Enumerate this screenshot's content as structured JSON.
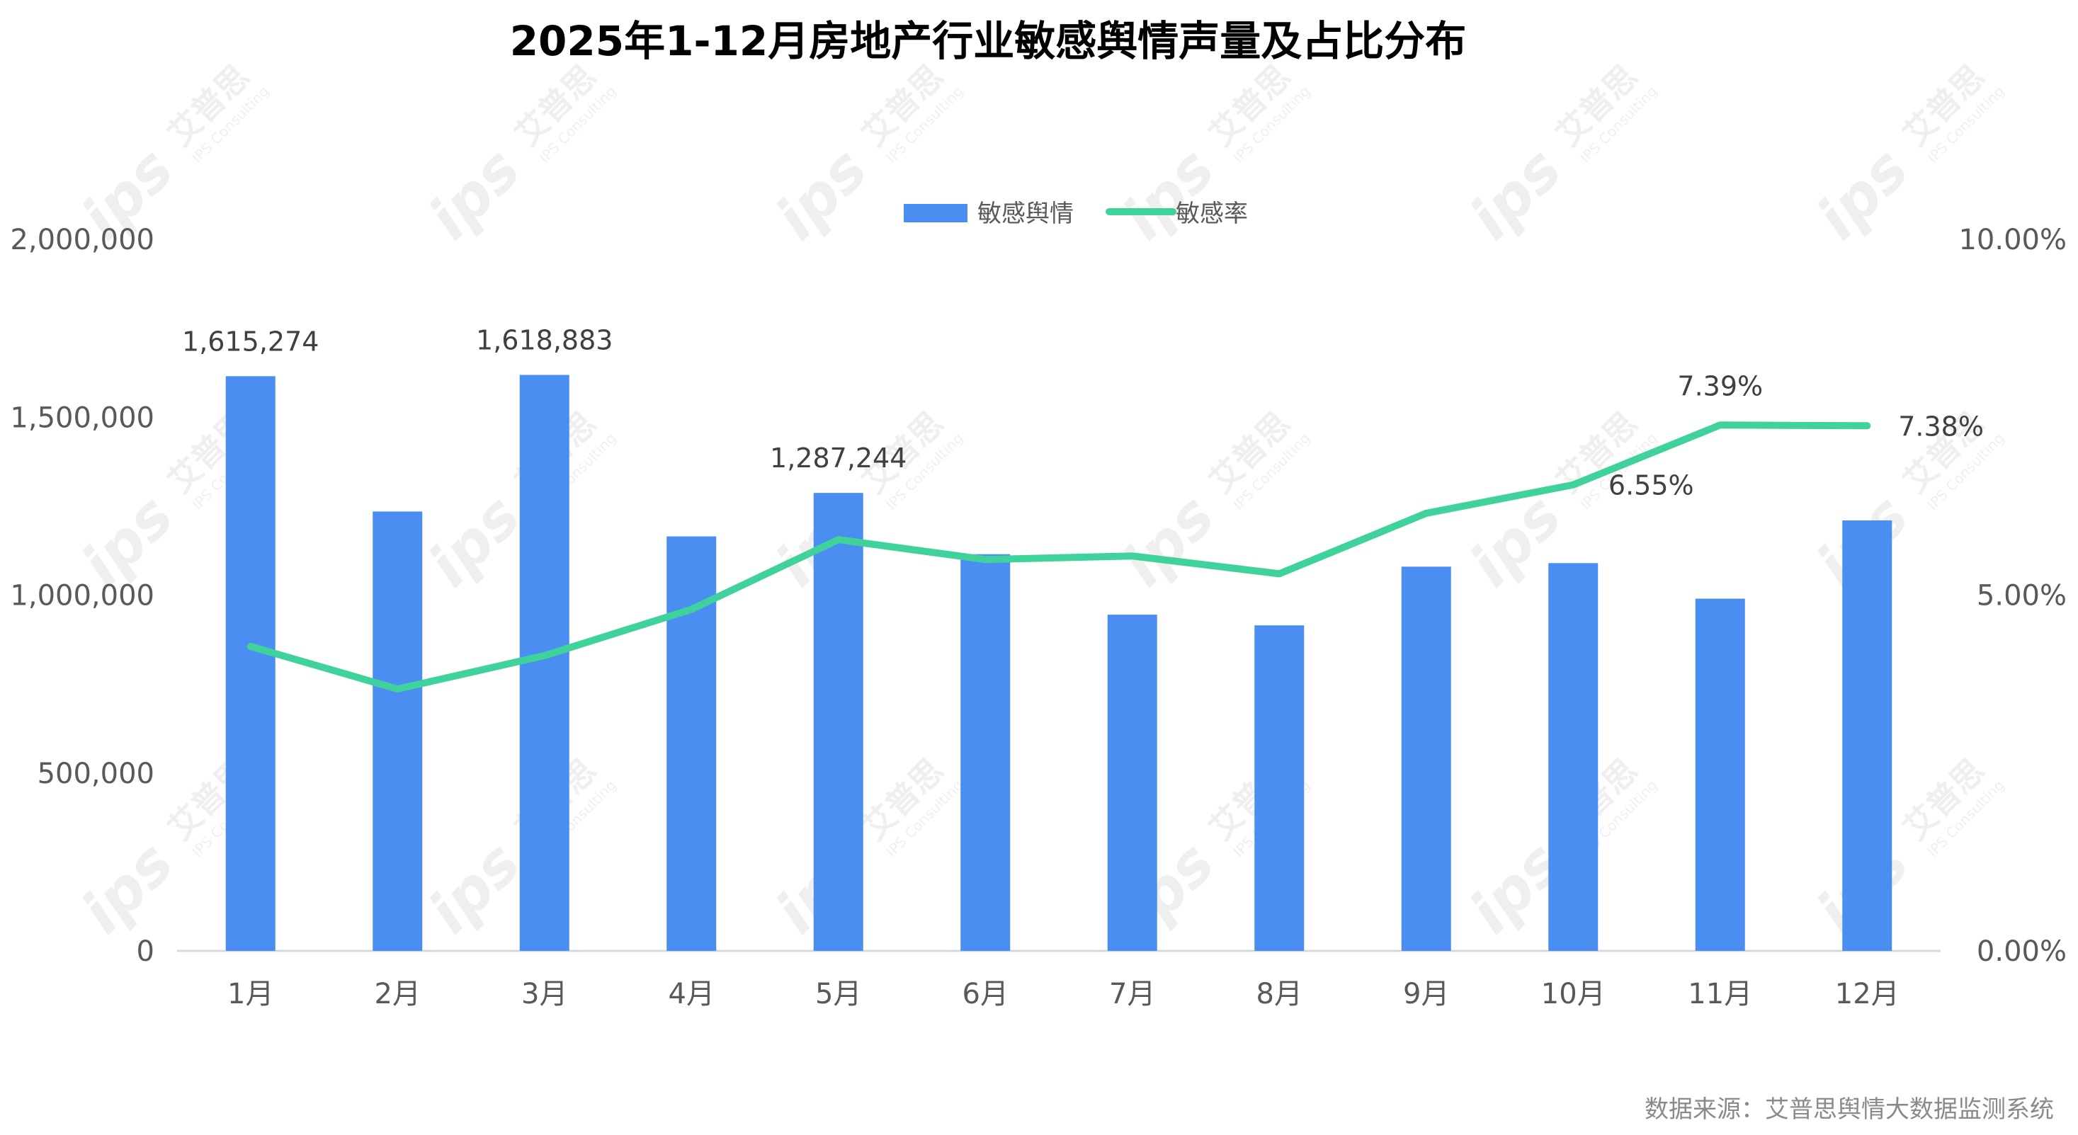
{
  "chart_data": {
    "type": "bar",
    "title": "2025年1-12月房地产行业敏感舆情声量及占比分布",
    "categories": [
      "1月",
      "2月",
      "3月",
      "4月",
      "5月",
      "6月",
      "7月",
      "8月",
      "9月",
      "10月",
      "11月",
      "12月"
    ],
    "series": [
      {
        "name": "敏感舆情",
        "type": "bar",
        "axis": "left",
        "color": "#4a8ef2",
        "values": [
          1615274,
          1235000,
          1618883,
          1165000,
          1287244,
          1115000,
          945000,
          915000,
          1080000,
          1090000,
          990000,
          1210000
        ]
      },
      {
        "name": "敏感率",
        "type": "line",
        "axis": "right",
        "color": "#3fd39b",
        "values": [
          4.28,
          3.68,
          4.15,
          4.8,
          5.78,
          5.5,
          5.55,
          5.3,
          6.15,
          6.55,
          7.39,
          7.38
        ]
      }
    ],
    "y_left": {
      "ylim": [
        0,
        2000000
      ],
      "ticks": [
        "0",
        "500,000",
        "1,000,000",
        "1,500,000",
        "2,000,000"
      ]
    },
    "y_right": {
      "ylim": [
        0,
        10
      ],
      "ticks": [
        "0.00%",
        "5.00%",
        "10.00%"
      ]
    },
    "bar_labels": [
      {
        "index": 0,
        "text": "1,615,274"
      },
      {
        "index": 2,
        "text": "1,618,883"
      },
      {
        "index": 4,
        "text": "1,287,244"
      }
    ],
    "line_labels": [
      {
        "index": 9,
        "text": "6.55%"
      },
      {
        "index": 10,
        "text": "7.39%"
      },
      {
        "index": 11,
        "text": "7.38%"
      }
    ],
    "legend": {
      "position": "top-center",
      "items": [
        "敏感舆情",
        "敏感率"
      ]
    },
    "grid": false,
    "source_note": "数据来源：艾普思舆情大数据监测系统"
  },
  "watermark": {
    "name": "艾普思",
    "sub": "IPS Consulting",
    "logo": "ips"
  },
  "colors": {
    "bar": "#4a8ef2",
    "line": "#3fd39b",
    "axis_text": "#595959",
    "baseline": "#d9d9d9"
  }
}
